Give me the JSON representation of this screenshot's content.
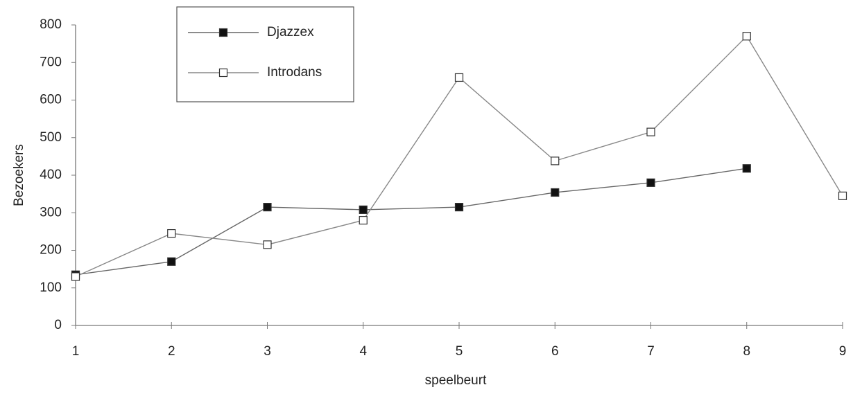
{
  "chart_data": {
    "type": "line",
    "x": [
      1,
      2,
      3,
      4,
      5,
      6,
      7,
      8,
      9
    ],
    "series": [
      {
        "name": "Djazzex",
        "color": "#666666",
        "marker": "filled-square",
        "values": [
          135,
          170,
          315,
          308,
          315,
          354,
          380,
          418,
          null
        ]
      },
      {
        "name": "Introdans",
        "color": "#888888",
        "marker": "open-square",
        "values": [
          130,
          245,
          215,
          280,
          660,
          438,
          515,
          770,
          345
        ]
      }
    ],
    "xlabel": "speelbeurt",
    "ylabel": "Bezoekers",
    "xlim": [
      1,
      9
    ],
    "xticks": [
      1,
      2,
      3,
      4,
      5,
      6,
      7,
      8,
      9
    ],
    "ylim": [
      0,
      800
    ],
    "yticks": [
      0,
      100,
      200,
      300,
      400,
      500,
      600,
      700,
      800
    ],
    "grid": false,
    "legend": "upper left"
  }
}
